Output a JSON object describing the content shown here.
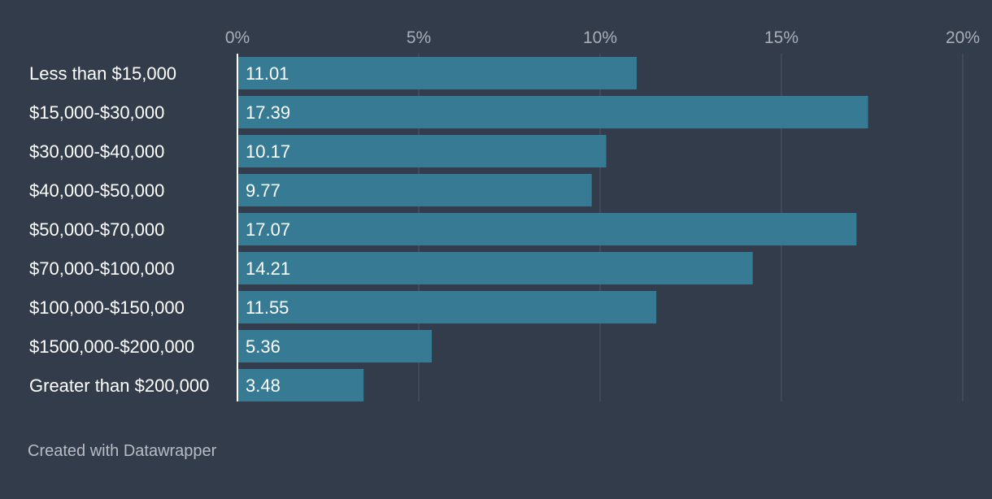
{
  "chart_data": {
    "type": "bar",
    "orientation": "horizontal",
    "categories": [
      "Less than $15,000",
      "$15,000-$30,000",
      "$30,000-$40,000",
      "$40,000-$50,000",
      "$50,000-$70,000",
      "$70,000-$100,000",
      "$100,000-$150,000",
      "$1500,000-$200,000",
      "Greater than $200,000"
    ],
    "values": [
      11.01,
      17.39,
      10.17,
      9.77,
      17.07,
      14.21,
      11.55,
      5.36,
      3.48
    ],
    "value_labels": [
      "11.01",
      "17.39",
      "10.17",
      "9.77",
      "17.07",
      "14.21",
      "11.55",
      "5.36",
      "3.48"
    ],
    "xlim": [
      0,
      20
    ],
    "x_ticks": [
      0,
      5,
      10,
      15,
      20
    ],
    "x_tick_labels": [
      "0%",
      "5%",
      "10%",
      "15%",
      "20%"
    ],
    "axis_position": "top",
    "grid": true,
    "bar_color": "#367a94",
    "grid_color": "#4d5666",
    "baseline_color": "#ffffff",
    "background_color": "#333c4b"
  },
  "footer": {
    "credit": "Created with Datawrapper"
  }
}
